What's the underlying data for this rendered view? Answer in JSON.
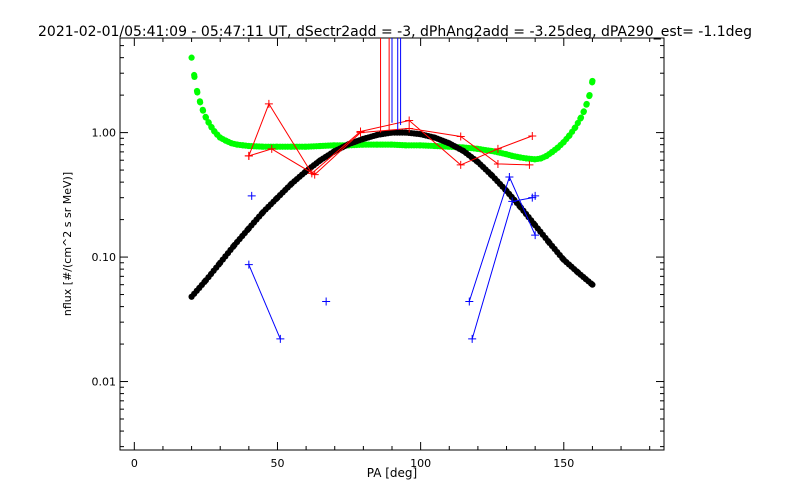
{
  "chart_data": {
    "type": "scatter",
    "title": "2021-02-01/05:41:09 - 05:47:11 UT, dSectr2add = -3, dPhAng2add = -3.25deg, dPA290_est=  -1.1deg",
    "xlabel": "PA [deg]",
    "ylabel": "nflux [#/(cm^2 s sr MeV)]",
    "xlim": [
      -5,
      185
    ],
    "ylim_log10": [
      -2.55,
      0.76
    ],
    "x_scale": "linear",
    "y_scale": "log",
    "x_ticks": [
      0,
      50,
      100,
      150
    ],
    "x_tick_labels": [
      "0",
      "50",
      "100",
      "150"
    ],
    "y_ticks": [
      0.01,
      0.1,
      1.0
    ],
    "y_tick_labels": [
      "0.01",
      "0.10",
      "1.00"
    ],
    "grid": false,
    "legend": "none",
    "series": [
      {
        "style": "dots",
        "color": "#00ff00",
        "points": [
          [
            20,
            4.0
          ],
          [
            21,
            2.8
          ],
          [
            22,
            2.1
          ],
          [
            23,
            1.75
          ],
          [
            24,
            1.5
          ],
          [
            25,
            1.32
          ],
          [
            26,
            1.2
          ],
          [
            27,
            1.1
          ],
          [
            28,
            1.02
          ],
          [
            29,
            0.96
          ],
          [
            30,
            0.91
          ],
          [
            32,
            0.86
          ],
          [
            34,
            0.82
          ],
          [
            36,
            0.8
          ],
          [
            38,
            0.79
          ],
          [
            40,
            0.78
          ],
          [
            45,
            0.77
          ],
          [
            50,
            0.77
          ],
          [
            55,
            0.77
          ],
          [
            60,
            0.77
          ],
          [
            65,
            0.78
          ],
          [
            70,
            0.79
          ],
          [
            75,
            0.79
          ],
          [
            80,
            0.8
          ],
          [
            85,
            0.8
          ],
          [
            90,
            0.8
          ],
          [
            95,
            0.79
          ],
          [
            100,
            0.79
          ],
          [
            105,
            0.78
          ],
          [
            110,
            0.77
          ],
          [
            115,
            0.76
          ],
          [
            120,
            0.74
          ],
          [
            125,
            0.71
          ],
          [
            130,
            0.67
          ],
          [
            132,
            0.65
          ],
          [
            135,
            0.63
          ],
          [
            137,
            0.62
          ],
          [
            140,
            0.61
          ],
          [
            142,
            0.62
          ],
          [
            144,
            0.65
          ],
          [
            146,
            0.7
          ],
          [
            148,
            0.76
          ],
          [
            150,
            0.84
          ],
          [
            152,
            0.95
          ],
          [
            154,
            1.1
          ],
          [
            156,
            1.32
          ],
          [
            157,
            1.48
          ],
          [
            158,
            1.7
          ],
          [
            159,
            2.0
          ],
          [
            160,
            2.6
          ]
        ]
      },
      {
        "style": "dots",
        "color": "#000000",
        "points": [
          [
            20,
            0.048
          ],
          [
            25,
            0.065
          ],
          [
            30,
            0.09
          ],
          [
            35,
            0.125
          ],
          [
            40,
            0.17
          ],
          [
            45,
            0.23
          ],
          [
            50,
            0.3
          ],
          [
            55,
            0.39
          ],
          [
            60,
            0.49
          ],
          [
            65,
            0.6
          ],
          [
            70,
            0.71
          ],
          [
            75,
            0.81
          ],
          [
            80,
            0.89
          ],
          [
            85,
            0.96
          ],
          [
            90,
            1.0
          ],
          [
            95,
            1.0
          ],
          [
            100,
            0.97
          ],
          [
            105,
            0.91
          ],
          [
            110,
            0.82
          ],
          [
            115,
            0.71
          ],
          [
            120,
            0.58
          ],
          [
            125,
            0.45
          ],
          [
            130,
            0.34
          ],
          [
            135,
            0.25
          ],
          [
            140,
            0.18
          ],
          [
            145,
            0.13
          ],
          [
            150,
            0.095
          ],
          [
            155,
            0.075
          ],
          [
            160,
            0.06
          ]
        ]
      },
      {
        "style": "line-plus",
        "color": "#ff0000",
        "points": [
          [
            40,
            0.65
          ],
          [
            47,
            1.7
          ],
          [
            62,
            0.47
          ],
          [
            79,
            1.02
          ],
          [
            96,
            1.25
          ],
          [
            114,
            0.55
          ],
          [
            127,
            0.74
          ],
          [
            139,
            0.94
          ]
        ]
      },
      {
        "style": "line-plus",
        "color": "#ff0000",
        "points": [
          [
            40,
            0.65
          ],
          [
            48,
            0.74
          ],
          [
            63,
            0.46
          ],
          [
            79,
            1.0
          ],
          [
            96,
            1.08
          ],
          [
            114,
            0.93
          ],
          [
            127,
            0.56
          ],
          [
            138,
            0.55
          ]
        ]
      },
      {
        "style": "plus",
        "color": "#0000ff",
        "points": [
          [
            41,
            0.31
          ],
          [
            67,
            0.044
          ],
          [
            140,
            0.31
          ]
        ]
      },
      {
        "style": "line-plus",
        "color": "#0000ff",
        "points": [
          [
            40,
            0.087
          ],
          [
            51,
            0.022
          ]
        ]
      },
      {
        "style": "line-plus",
        "color": "#0000ff",
        "points": [
          [
            117,
            0.044
          ],
          [
            131,
            0.44
          ],
          [
            140,
            0.15
          ]
        ]
      },
      {
        "style": "line-plus",
        "color": "#0000ff",
        "points": [
          [
            118,
            0.022
          ],
          [
            132,
            0.28
          ],
          [
            139,
            0.3
          ]
        ]
      }
    ],
    "vlines": [
      {
        "x": 86,
        "y_from": 1.0,
        "color": "#ff0000"
      },
      {
        "x": 89,
        "y_from": 1.05,
        "color": "#ff0000"
      },
      {
        "x": 90,
        "y_from": 1.2,
        "color": "#0000ff"
      },
      {
        "x": 92,
        "y_from": 1.05,
        "color": "#0000ff"
      },
      {
        "x": 93,
        "y_from": 1.15,
        "color": "#0000ff"
      }
    ]
  }
}
